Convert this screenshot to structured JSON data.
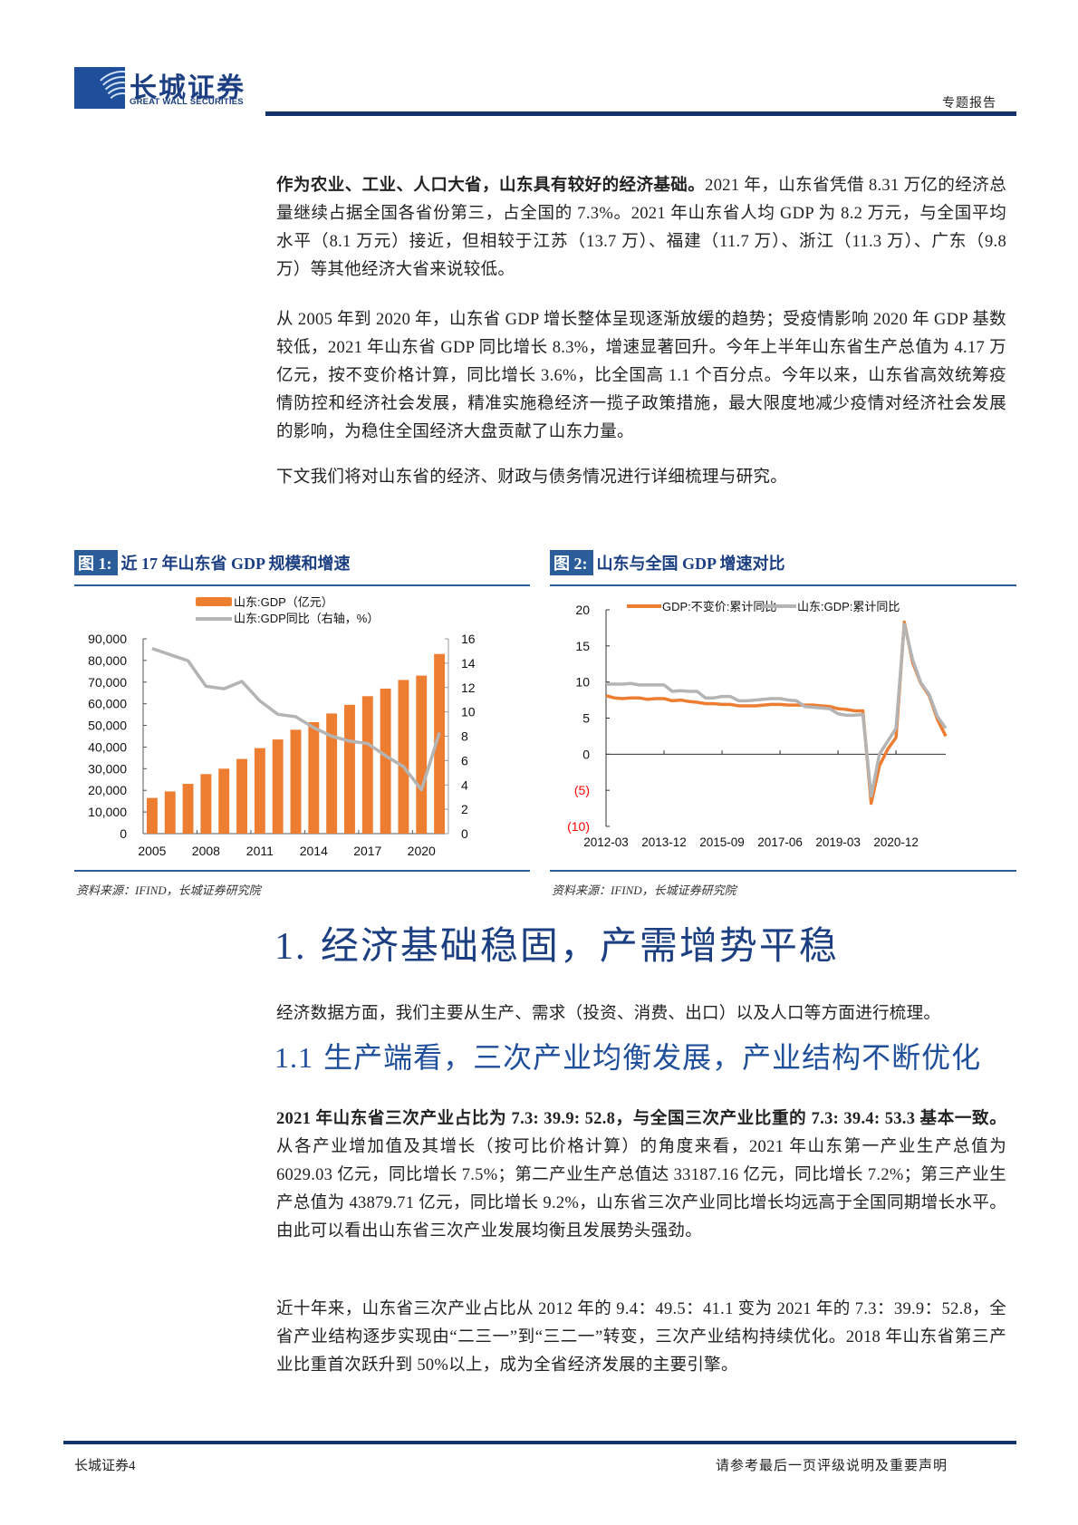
{
  "header": {
    "logo_cn": "长城证券",
    "logo_en": "GREAT WALL SECURITIES",
    "report_type": "专题报告"
  },
  "intro": {
    "p1_bold": "作为农业、工业、人口大省，山东具有较好的经济基础。",
    "p1_rest": "2021 年，山东省凭借 8.31 万亿的经济总量继续占据全国各省份第三，占全国的 7.3%。2021 年山东省人均 GDP 为 8.2 万元，与全国平均水平（8.1 万元）接近，但相较于江苏（13.7 万）、福建（11.7 万）、浙江（11.3 万）、广东（9.8 万）等其他经济大省来说较低。",
    "p2": "从 2005 年到 2020 年，山东省 GDP 增长整体呈现逐渐放缓的趋势；受疫情影响 2020 年 GDP 基数较低，2021 年山东省 GDP 同比增长 8.3%，增速显著回升。今年上半年山东省生产总值为 4.17 万亿元，按不变价格计算，同比增长 3.6%，比全国高 1.1 个百分点。今年以来，山东省高效统筹疫情防控和经济社会发展，精准实施稳经济一揽子政策措施，最大限度地减少疫情对经济社会发展的影响，为稳住全国经济大盘贡献了山东力量。",
    "p3": "下文我们将对山东省的经济、财政与债务情况进行详细梳理与研究。"
  },
  "figure1": {
    "tag": "图 1:",
    "title": "近 17 年山东省 GDP 规模和增速",
    "source": "资料来源：IFIND，长城证券研究院"
  },
  "figure2": {
    "tag": "图 2:",
    "title": "山东与全国 GDP 增速对比",
    "source": "资料来源：IFIND，长城证券研究院"
  },
  "chart_data": [
    {
      "type": "bar",
      "title": "近 17 年山东省 GDP 规模和增速",
      "categories": [
        "2005",
        "2006",
        "2007",
        "2008",
        "2009",
        "2010",
        "2011",
        "2012",
        "2013",
        "2014",
        "2015",
        "2016",
        "2017",
        "2018",
        "2019",
        "2020",
        "2021"
      ],
      "x_tick_labels": [
        "2005",
        "2008",
        "2011",
        "2014",
        "2017",
        "2020"
      ],
      "series": [
        {
          "name": "山东:GDP（亿元）",
          "type": "bar",
          "axis": "left",
          "color": "#ed7d31",
          "values": [
            16500,
            19500,
            23000,
            27500,
            30000,
            34500,
            39500,
            43500,
            48000,
            51500,
            55500,
            59500,
            63500,
            67000,
            71000,
            73000,
            83000
          ]
        },
        {
          "name": "山东:GDP同比（右轴，%）",
          "type": "line",
          "axis": "right",
          "color": "#b4b4b4",
          "values": [
            15.2,
            14.7,
            14.2,
            12.1,
            11.9,
            12.5,
            10.9,
            9.8,
            9.6,
            8.7,
            8.0,
            7.6,
            7.4,
            6.4,
            5.5,
            3.6,
            8.3
          ]
        }
      ],
      "left_axis": {
        "ticks": [
          "0",
          "10,000",
          "20,000",
          "30,000",
          "40,000",
          "50,000",
          "60,000",
          "70,000",
          "80,000",
          "90,000"
        ],
        "ylim": [
          0,
          90000
        ]
      },
      "right_axis": {
        "ticks": [
          "0",
          "2",
          "4",
          "6",
          "8",
          "10",
          "12",
          "14",
          "16"
        ],
        "ylim": [
          0,
          16
        ]
      },
      "legend_position": "top",
      "grid": false
    },
    {
      "type": "line",
      "title": "山东与全国 GDP 增速对比",
      "x_tick_labels": [
        "2012-03",
        "2013-12",
        "2015-09",
        "2017-06",
        "2019-03",
        "2020-12"
      ],
      "x_range": [
        "2012-03",
        "2022-06"
      ],
      "series": [
        {
          "name": "GDP:不变价:累计同比",
          "color": "#ed7d31",
          "values": [
            8.1,
            7.8,
            7.7,
            7.8,
            7.8,
            7.6,
            7.7,
            7.7,
            7.4,
            7.5,
            7.3,
            7.2,
            7.0,
            7.0,
            6.9,
            6.9,
            6.7,
            6.7,
            6.7,
            6.8,
            6.9,
            6.9,
            6.8,
            6.8,
            6.8,
            6.8,
            6.7,
            6.6,
            6.3,
            6.2,
            6.0,
            6.0,
            -6.8,
            -1.6,
            0.7,
            2.3,
            18.3,
            12.7,
            9.8,
            8.1,
            4.8,
            2.5
          ]
        },
        {
          "name": "山东:GDP:累计同比",
          "color": "#b4b4b4",
          "values": [
            9.7,
            9.7,
            9.7,
            9.8,
            9.6,
            9.6,
            9.6,
            9.6,
            8.7,
            8.8,
            8.7,
            8.7,
            7.8,
            7.8,
            8.0,
            8.0,
            7.4,
            7.4,
            7.5,
            7.6,
            7.7,
            7.7,
            7.5,
            7.4,
            6.6,
            6.5,
            6.4,
            6.3,
            5.6,
            5.4,
            5.4,
            5.5,
            -5.8,
            0.0,
            1.8,
            3.6,
            18.0,
            13.1,
            9.9,
            8.3,
            5.2,
            3.6
          ]
        }
      ],
      "y_axis": {
        "ticks": [
          "(10)",
          "(5)",
          "0",
          "5",
          "10",
          "15",
          "20"
        ],
        "ylim": [
          -10,
          20
        ],
        "negative_color": "#ff0000"
      },
      "legend_position": "top",
      "grid": false
    }
  ],
  "section1": {
    "number": "1.",
    "title": "经济基础稳固，产需增势平稳",
    "intro": "经济数据方面，我们主要从生产、需求（投资、消费、出口）以及人口等方面进行梳理。"
  },
  "section1_1": {
    "number": "1.1",
    "title": "生产端看，三次产业均衡发展，产业结构不断优化",
    "p1_bold": "2021 年山东省三次产业占比为 7.3: 39.9: 52.8，与全国三次产业比重的 7.3: 39.4: 53.3 基本一致。",
    "p1_rest": "从各产业增加值及其增长（按可比价格计算）的角度来看，2021 年山东第一产业生产总值为 6029.03 亿元，同比增长 7.5%；第二产业生产总值达 33187.16 亿元，同比增长 7.2%；第三产业生产总值为 43879.71 亿元，同比增长 9.2%，山东省三次产业同比增长均远高于全国同期增长水平。由此可以看出山东省三次产业发展均衡且发展势头强劲。",
    "p2": "近十年来，山东省三次产业占比从 2012 年的 9.4：49.5：41.1 变为 2021 年的 7.3：39.9：52.8，全省产业结构逐步实现由“二三一”到“三二一”转变，三次产业结构持续优化。2018 年山东省第三产业比重首次跃升到 50%以上，成为全省经济发展的主要引擎。"
  },
  "footer": {
    "left": "长城证券4",
    "right": "请参考最后一页评级说明及重要声明"
  }
}
